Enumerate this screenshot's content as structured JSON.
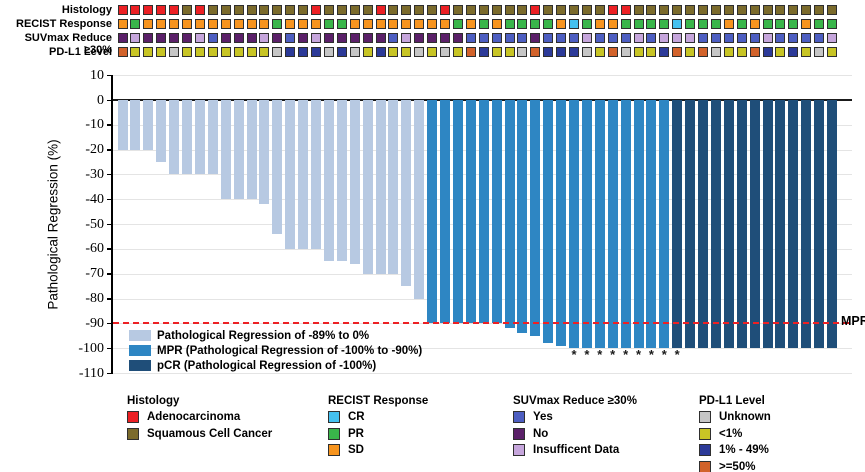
{
  "ylabel": "Pathological Regression (%)",
  "mpr_label": "MPR",
  "asterisk_char": "*",
  "colors": {
    "A": "#ec2024",
    "S": "#7b6b2c",
    "O": "#f7941e",
    "G": "#39b54a",
    "C": "#45c1f0",
    "B": "#4d5ec1",
    "P": "#5b2069",
    "L": "#c6a6dc",
    "X": "#c6c6c6",
    "Y": "#c8c525",
    "N": "#2c3a98",
    "R": "#d2622a",
    "reg": "#b7c9e2",
    "mpr": "#2e86c3",
    "pcr": "#1f4e79",
    "dashed_line": "#ed2024",
    "zero_line": "#1a1a1a",
    "grid": "#e4e4e4"
  },
  "tracks": {
    "labels": [
      "Histology",
      "RECIST Response",
      "SUVmax Reduce ≥30%",
      "PD-L1 Level"
    ],
    "histology": [
      "A",
      "A",
      "A",
      "A",
      "A",
      "S",
      "A",
      "S",
      "S",
      "S",
      "S",
      "S",
      "S",
      "S",
      "S",
      "A",
      "S",
      "S",
      "S",
      "S",
      "A",
      "S",
      "S",
      "S",
      "S",
      "A",
      "S",
      "S",
      "S",
      "S",
      "S",
      "S",
      "A",
      "S",
      "S",
      "S",
      "S",
      "S",
      "A",
      "A",
      "S",
      "S",
      "S",
      "S",
      "S",
      "S",
      "S",
      "S",
      "S",
      "S",
      "S",
      "S",
      "S",
      "S",
      "S",
      "S"
    ],
    "recist": [
      "O",
      "G",
      "O",
      "O",
      "O",
      "O",
      "O",
      "O",
      "O",
      "O",
      "O",
      "O",
      "G",
      "O",
      "O",
      "O",
      "G",
      "G",
      "O",
      "O",
      "O",
      "O",
      "O",
      "O",
      "O",
      "O",
      "G",
      "O",
      "G",
      "O",
      "G",
      "G",
      "G",
      "G",
      "O",
      "C",
      "G",
      "O",
      "O",
      "G",
      "G",
      "G",
      "G",
      "C",
      "G",
      "G",
      "G",
      "O",
      "G",
      "O",
      "G",
      "G",
      "G",
      "O",
      "G",
      "G"
    ],
    "suvmax": [
      "P",
      "L",
      "P",
      "P",
      "P",
      "P",
      "L",
      "B",
      "P",
      "P",
      "P",
      "L",
      "P",
      "B",
      "P",
      "L",
      "P",
      "P",
      "P",
      "P",
      "P",
      "B",
      "L",
      "P",
      "P",
      "P",
      "P",
      "B",
      "B",
      "B",
      "B",
      "B",
      "P",
      "B",
      "B",
      "B",
      "L",
      "B",
      "B",
      "B",
      "L",
      "B",
      "L",
      "L",
      "L",
      "B",
      "B",
      "B",
      "B",
      "B",
      "L",
      "B",
      "B",
      "B",
      "B",
      "L"
    ],
    "pdl1": [
      "R",
      "Y",
      "Y",
      "Y",
      "X",
      "Y",
      "Y",
      "Y",
      "Y",
      "Y",
      "Y",
      "Y",
      "X",
      "N",
      "N",
      "N",
      "X",
      "N",
      "X",
      "Y",
      "N",
      "Y",
      "Y",
      "X",
      "Y",
      "X",
      "Y",
      "R",
      "N",
      "Y",
      "Y",
      "X",
      "R",
      "N",
      "N",
      "N",
      "X",
      "Y",
      "R",
      "X",
      "Y",
      "Y",
      "N",
      "R",
      "Y",
      "R",
      "X",
      "Y",
      "Y",
      "R",
      "N",
      "Y",
      "N",
      "Y",
      "X",
      "Y"
    ]
  },
  "chart_data": {
    "type": "bar",
    "title": "",
    "xlabel": "",
    "ylabel": "Pathological Regression (%)",
    "ylim": [
      -110,
      10
    ],
    "yticks": [
      10,
      0,
      -10,
      -20,
      -30,
      -40,
      -50,
      -60,
      -70,
      -80,
      -90,
      -100,
      -110
    ],
    "grid": true,
    "n_patients": 56,
    "values": [
      -20,
      -20,
      -20,
      -25,
      -30,
      -30,
      -30,
      -30,
      -40,
      -40,
      -40,
      -42,
      -54,
      -60,
      -60,
      -60,
      -65,
      -65,
      -66,
      -70,
      -70,
      -70,
      -75,
      -80,
      -90,
      -90,
      -90,
      -90,
      -90,
      -90,
      -92,
      -94,
      -95,
      -98,
      -99,
      -100,
      -100,
      -100,
      -100,
      -100,
      -100,
      -100,
      -100,
      -100,
      -100,
      -100,
      -100,
      -100,
      -100,
      -100,
      -100,
      -100,
      -100,
      -100,
      -100,
      -100
    ],
    "groups": [
      "reg",
      "reg",
      "reg",
      "reg",
      "reg",
      "reg",
      "reg",
      "reg",
      "reg",
      "reg",
      "reg",
      "reg",
      "reg",
      "reg",
      "reg",
      "reg",
      "reg",
      "reg",
      "reg",
      "reg",
      "reg",
      "reg",
      "reg",
      "reg",
      "mpr",
      "mpr",
      "mpr",
      "mpr",
      "mpr",
      "mpr",
      "mpr",
      "mpr",
      "mpr",
      "mpr",
      "mpr",
      "mpr",
      "mpr",
      "mpr",
      "mpr",
      "mpr",
      "mpr",
      "mpr",
      "mpr",
      "pcr",
      "pcr",
      "pcr",
      "pcr",
      "pcr",
      "pcr",
      "pcr",
      "pcr",
      "pcr",
      "pcr",
      "pcr",
      "pcr",
      "pcr"
    ],
    "asterisk_bars": [
      36,
      37,
      38,
      39,
      40,
      41,
      42,
      43,
      44
    ],
    "reference_line": {
      "y": -90,
      "label": "MPR",
      "style": "dashed-red"
    }
  },
  "plot_legend": [
    {
      "label": "Pathological Regression of -89% to 0%",
      "color_key": "reg"
    },
    {
      "label": "MPR (Pathological Regression of -100% to -90%)",
      "color_key": "mpr"
    },
    {
      "label": "pCR (Pathological Regression of -100%)",
      "color_key": "pcr"
    }
  ],
  "bottom_legend": [
    {
      "title": "Histology",
      "items": [
        {
          "label": "Adenocarcinoma",
          "color_key": "A"
        },
        {
          "label": "Squamous Cell Cancer",
          "color_key": "S"
        }
      ]
    },
    {
      "title": "RECIST Response",
      "items": [
        {
          "label": "CR",
          "color_key": "C"
        },
        {
          "label": "PR",
          "color_key": "G"
        },
        {
          "label": "SD",
          "color_key": "O"
        }
      ]
    },
    {
      "title": "SUVmax Reduce ≥30%",
      "items": [
        {
          "label": "Yes",
          "color_key": "B"
        },
        {
          "label": "No",
          "color_key": "P"
        },
        {
          "label": "Insufficent Data",
          "color_key": "L"
        }
      ]
    },
    {
      "title": "PD-L1 Level",
      "items": [
        {
          "label": "Unknown",
          "color_key": "X"
        },
        {
          "label": "<1%",
          "color_key": "Y"
        },
        {
          "label": "1% - 49%",
          "color_key": "N"
        },
        {
          "label": ">=50%",
          "color_key": "R"
        }
      ]
    }
  ]
}
